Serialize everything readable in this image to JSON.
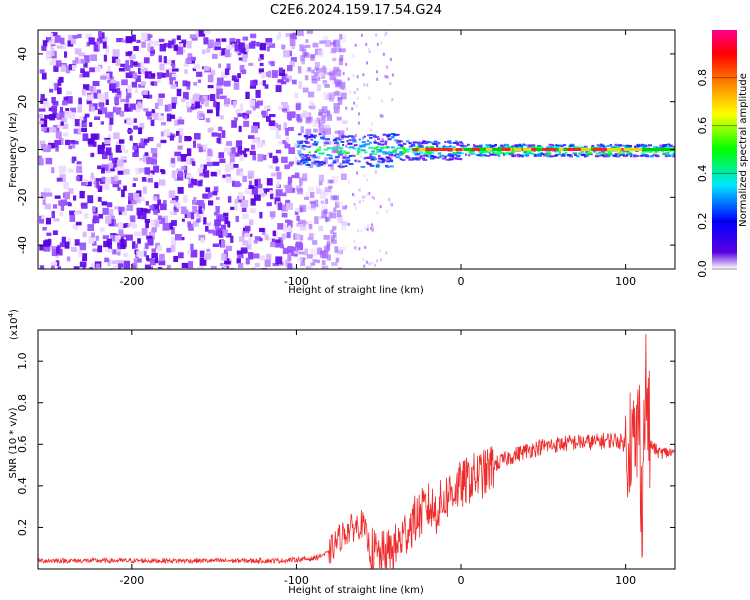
{
  "title": "C2E6.2024.159.17.54.G24",
  "chart_data": [
    {
      "type": "heatmap",
      "xlabel": "Height of straight line (km)",
      "ylabel": "Frequency (Hz)",
      "xlim": [
        -257,
        130
      ],
      "ylim": [
        -50,
        50
      ],
      "x_ticks": [
        -200,
        -100,
        0,
        100
      ],
      "y_ticks": [
        -40,
        -20,
        0,
        20,
        40
      ],
      "colorbar": {
        "label": "Normalized spectral amplitude",
        "range": [
          0,
          1
        ],
        "ticks": [
          0.0,
          0.2,
          0.4,
          0.6,
          0.8
        ],
        "tick_labels": [
          "0.0",
          "0.2",
          "0.4",
          "0.6",
          "0.8"
        ],
        "colors": [
          "#ffffff",
          "#5a00e0",
          "#0000ff",
          "#00e5ff",
          "#00ff00",
          "#ffff00",
          "#ff8000",
          "#ff0000",
          "#ff0090"
        ]
      },
      "description_values": {
        "noise_region_x": [
          -257,
          -72
        ],
        "scattered_region_x": [
          -72,
          -40
        ],
        "signal_band_center_hz": 0,
        "strong_signal_x": [
          -30,
          110
        ]
      }
    },
    {
      "type": "line",
      "xlabel": "Height of straight line (km)",
      "ylabel": "SNR (10 * v/v)",
      "scale_note": "(x10",
      "scale_exponent": "4",
      "scale_close": ")",
      "xlim": [
        -257,
        130
      ],
      "ylim": [
        0,
        1.15
      ],
      "x_ticks": [
        -200,
        -100,
        0,
        100
      ],
      "y_ticks": [
        0.2,
        0.4,
        0.6,
        0.8,
        1.0
      ],
      "y_tick_labels": [
        "0.2",
        "0.4",
        "0.6",
        "0.8",
        "1.0"
      ],
      "color": "#ee2a2a",
      "series": [
        {
          "x": [
            -257,
            -200,
            -150,
            -110,
            -90,
            -80,
            -75,
            -70,
            -65,
            -60,
            -55,
            -50,
            -45,
            -40,
            -35,
            -30,
            -25,
            -20,
            -15,
            -10,
            -5,
            0,
            5,
            10,
            15,
            20,
            25,
            30,
            40,
            50,
            60,
            70,
            80,
            90,
            95,
            100,
            103,
            106,
            108,
            110,
            112,
            115,
            120,
            125,
            130
          ],
          "y": [
            0.04,
            0.04,
            0.04,
            0.04,
            0.05,
            0.08,
            0.14,
            0.18,
            0.2,
            0.22,
            0.09,
            0.06,
            0.07,
            0.1,
            0.16,
            0.22,
            0.26,
            0.3,
            0.28,
            0.34,
            0.38,
            0.4,
            0.43,
            0.45,
            0.46,
            0.5,
            0.52,
            0.54,
            0.57,
            0.59,
            0.6,
            0.61,
            0.61,
            0.62,
            0.62,
            0.6,
            0.65,
            0.55,
            0.75,
            0.3,
            0.9,
            0.6,
            0.56,
            0.56,
            0.56
          ]
        }
      ]
    }
  ]
}
